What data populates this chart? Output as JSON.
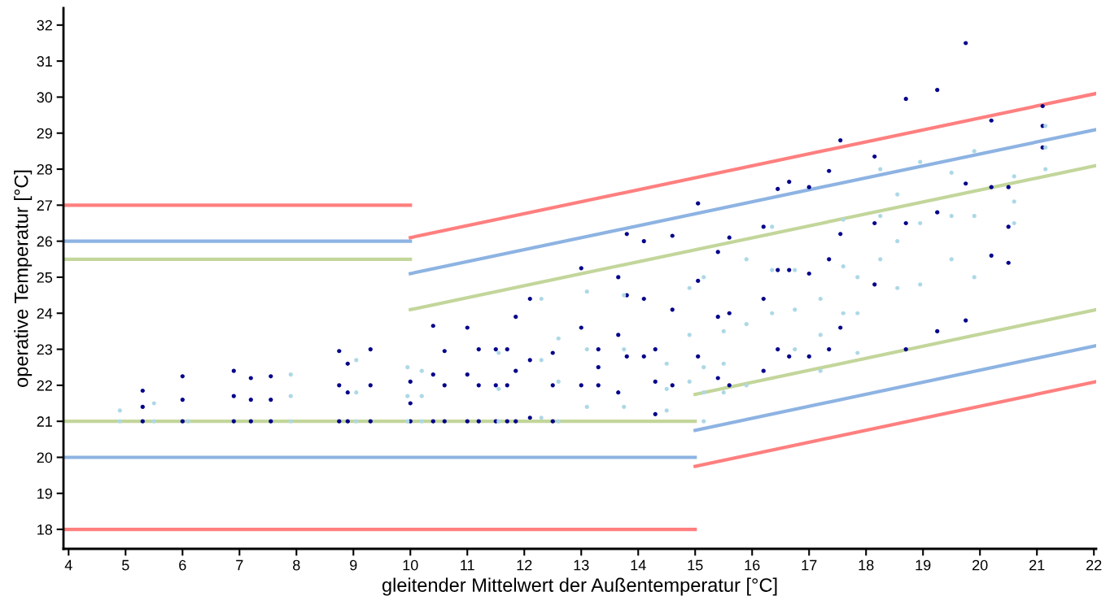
{
  "chart_data": {
    "type": "scatter",
    "xlabel": "gleitender Mittelwert der Außentemperatur [°C]",
    "ylabel": "operative Temperatur [°C]",
    "xlim": [
      3.91,
      22.04
    ],
    "ylim": [
      17.46,
      32.47
    ],
    "xticks": [
      4,
      5,
      6,
      7,
      8,
      9,
      10,
      11,
      12,
      13,
      14,
      15,
      16,
      17,
      18,
      19,
      20,
      21,
      22
    ],
    "yticks": [
      18,
      19,
      20,
      21,
      22,
      23,
      24,
      25,
      26,
      27,
      28,
      29,
      30,
      31,
      32
    ],
    "grid": false,
    "series": [
      {
        "marker": "circle",
        "color": "#00008b",
        "x": [
          5.3,
          5.3,
          5.3,
          6.0,
          6.0,
          6.0,
          6.9,
          6.9,
          6.9,
          7.2,
          7.2,
          7.2,
          7.55,
          7.55,
          7.55,
          8.75,
          8.75,
          8.75,
          8.9,
          8.9,
          8.9,
          9.3,
          9.3,
          9.3,
          10.0,
          10.0,
          10.0,
          10.4,
          10.4,
          10.4,
          10.6,
          10.6,
          10.6,
          11.0,
          11.0,
          11.0,
          11.2,
          11.2,
          11.2,
          11.5,
          11.5,
          11.5,
          11.7,
          11.7,
          11.7,
          11.85,
          11.85,
          11.85,
          12.1,
          12.1,
          12.1,
          12.5,
          12.5,
          12.5,
          13.0,
          13.0,
          13.0,
          13.3,
          13.3,
          13.3,
          13.65,
          13.65,
          13.65,
          13.8,
          13.8,
          13.8,
          14.1,
          14.1,
          14.1,
          14.3,
          14.3,
          14.3,
          14.6,
          14.6,
          14.6,
          15.05,
          15.05,
          15.05,
          15.4,
          15.4,
          15.4,
          15.6,
          15.6,
          15.6,
          16.2,
          16.2,
          16.2,
          16.45,
          16.45,
          16.45,
          16.65,
          16.65,
          16.65,
          17.0,
          17.0,
          17.0,
          17.35,
          17.35,
          17.35,
          17.55,
          17.55,
          17.55,
          18.15,
          18.15,
          18.15,
          18.7,
          18.7,
          18.7,
          19.25,
          19.25,
          19.25,
          19.75,
          19.75,
          19.75,
          20.2,
          20.2,
          20.2,
          20.5,
          20.5,
          20.5,
          21.1,
          21.1,
          21.1
        ],
        "values": [
          21.0,
          21.4,
          21.85,
          21.0,
          21.6,
          22.25,
          21.0,
          21.7,
          22.4,
          21.0,
          21.6,
          22.2,
          21.0,
          21.6,
          22.25,
          21.0,
          22.0,
          22.95,
          21.0,
          21.8,
          22.6,
          21.0,
          22.0,
          23.0,
          21.0,
          21.5,
          22.1,
          21.0,
          22.3,
          23.65,
          21.0,
          22.0,
          22.95,
          21.0,
          22.3,
          23.6,
          21.0,
          22.0,
          23.0,
          21.0,
          22.0,
          23.0,
          21.0,
          22.0,
          23.0,
          21.0,
          22.4,
          23.9,
          21.1,
          22.7,
          24.4,
          21.0,
          22.0,
          22.9,
          22.0,
          23.6,
          25.25,
          22.0,
          22.5,
          23.0,
          21.8,
          23.4,
          25.0,
          22.8,
          24.5,
          26.2,
          22.8,
          24.4,
          26.0,
          21.2,
          22.1,
          23.0,
          22.0,
          24.1,
          26.15,
          22.8,
          24.9,
          27.05,
          22.2,
          23.9,
          25.7,
          22.0,
          24.0,
          26.1,
          22.4,
          24.4,
          26.4,
          23.0,
          25.2,
          27.45,
          22.8,
          25.2,
          27.65,
          22.8,
          25.1,
          27.5,
          23.0,
          25.5,
          27.95,
          23.6,
          26.2,
          28.8,
          24.8,
          26.5,
          28.35,
          23.0,
          26.5,
          29.95,
          23.5,
          26.8,
          30.2,
          23.8,
          27.6,
          31.5,
          25.6,
          27.5,
          29.35,
          25.4,
          26.4,
          27.5,
          28.6,
          29.2,
          29.75
        ]
      },
      {
        "marker": "circle",
        "color": "#add8e6",
        "x": [
          4.9,
          4.9,
          5.5,
          5.5,
          6.1,
          7.9,
          7.9,
          7.9,
          9.05,
          9.05,
          9.05,
          9.95,
          9.95,
          9.95,
          10.2,
          10.2,
          10.2,
          11.55,
          11.55,
          11.55,
          12.3,
          12.3,
          12.3,
          12.6,
          12.6,
          12.6,
          13.1,
          13.1,
          13.1,
          13.75,
          13.75,
          13.75,
          14.5,
          14.5,
          14.5,
          14.9,
          14.9,
          14.9,
          15.15,
          15.15,
          15.15,
          15.15,
          15.5,
          15.5,
          15.5,
          15.9,
          15.9,
          15.9,
          16.35,
          16.35,
          16.35,
          16.75,
          16.75,
          16.75,
          17.2,
          17.2,
          17.2,
          17.6,
          17.6,
          17.6,
          17.85,
          17.85,
          17.85,
          18.25,
          18.25,
          18.25,
          18.55,
          18.55,
          18.55,
          18.95,
          18.95,
          18.95,
          19.5,
          19.5,
          19.5,
          19.9,
          19.9,
          19.9,
          20.6,
          20.6,
          20.6,
          21.15,
          21.15,
          21.15
        ],
        "values": [
          21.0,
          21.3,
          21.0,
          21.5,
          21.0,
          21.0,
          21.7,
          22.3,
          21.0,
          21.8,
          22.7,
          21.0,
          21.7,
          22.5,
          21.0,
          21.7,
          22.4,
          21.0,
          21.9,
          22.9,
          21.1,
          22.7,
          24.4,
          21.0,
          22.1,
          23.3,
          21.4,
          23.0,
          24.6,
          21.4,
          23.0,
          24.5,
          21.3,
          21.9,
          22.6,
          22.1,
          23.4,
          24.7,
          21.0,
          21.8,
          22.5,
          25.0,
          21.8,
          22.6,
          23.5,
          22.0,
          23.7,
          25.5,
          24.0,
          25.2,
          26.4,
          23.0,
          24.1,
          25.2,
          22.4,
          23.4,
          24.4,
          24.0,
          25.3,
          26.6,
          22.9,
          24.0,
          25.0,
          25.5,
          26.7,
          28.0,
          24.7,
          26.0,
          27.3,
          24.8,
          26.5,
          28.2,
          25.5,
          26.7,
          27.9,
          25.0,
          26.7,
          28.5,
          26.5,
          27.1,
          27.8,
          28.0,
          28.6,
          29.2
        ]
      },
      {
        "type": "line",
        "color": "#ff7f7f",
        "x": [
          3.91,
          10
        ],
        "values": [
          27,
          27
        ]
      },
      {
        "type": "line",
        "color": "#8db3e2",
        "x": [
          3.91,
          10
        ],
        "values": [
          26,
          26
        ]
      },
      {
        "type": "line",
        "color": "#c3d69b",
        "x": [
          3.91,
          10
        ],
        "values": [
          25.5,
          25.5
        ]
      },
      {
        "type": "line",
        "color": "#ff7f7f",
        "x": [
          10,
          22.04
        ],
        "values": [
          26.1,
          30.1
        ]
      },
      {
        "type": "line",
        "color": "#8db3e2",
        "x": [
          10,
          22.04
        ],
        "values": [
          25.1,
          29.1
        ]
      },
      {
        "type": "line",
        "color": "#c3d69b",
        "x": [
          10,
          22.04
        ],
        "values": [
          24.1,
          28.1
        ]
      },
      {
        "type": "line",
        "color": "#c3d69b",
        "x": [
          3.91,
          15
        ],
        "values": [
          21,
          21
        ]
      },
      {
        "type": "line",
        "color": "#8db3e2",
        "x": [
          3.91,
          15
        ],
        "values": [
          20,
          20
        ]
      },
      {
        "type": "line",
        "color": "#ff7f7f",
        "x": [
          3.91,
          15
        ],
        "values": [
          18,
          18
        ]
      },
      {
        "type": "line",
        "color": "#c3d69b",
        "x": [
          15,
          22.04
        ],
        "values": [
          21.75,
          24.1
        ]
      },
      {
        "type": "line",
        "color": "#8db3e2",
        "x": [
          15,
          22.04
        ],
        "values": [
          20.75,
          23.1
        ]
      },
      {
        "type": "line",
        "color": "#ff7f7f",
        "x": [
          15,
          22.04
        ],
        "values": [
          19.75,
          22.1
        ]
      }
    ]
  }
}
